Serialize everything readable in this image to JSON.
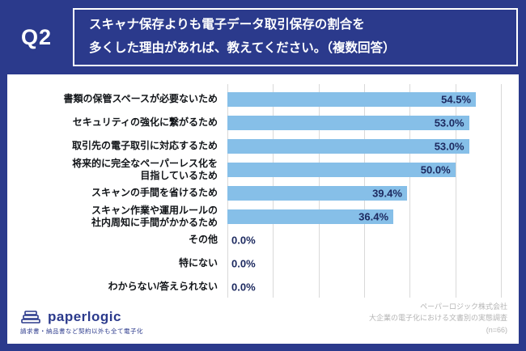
{
  "header": {
    "q_label": "Q2",
    "title_line1": "スキャナ保存よりも電子データ取引保存の割合を",
    "title_line2": "多くした理由があれば、教えてください。（複数回答）"
  },
  "chart_data": {
    "type": "bar",
    "orientation": "horizontal",
    "title": "スキャナ保存よりも電子データ取引保存の割合を多くした理由があれば、教えてください。（複数回答）",
    "categories": [
      "書類の保管スペースが必要ないため",
      "セキュリティの強化に繋がるため",
      "取引先の電子取引に対応するため",
      "将来的に完全なペーパーレス化を\n目指しているため",
      "スキャンの手間を省けるため",
      "スキャン作業や運用ルールの\n社内周知に手間がかかるため",
      "その他",
      "特にない",
      "わからない/答えられない"
    ],
    "values": [
      54.5,
      53.0,
      53.0,
      50.0,
      39.4,
      36.4,
      0.0,
      0.0,
      0.0
    ],
    "value_labels": [
      "54.5%",
      "53.0%",
      "53.0%",
      "50.0%",
      "39.4%",
      "36.4%",
      "0.0%",
      "0.0%",
      "0.0%"
    ],
    "xlim": [
      0,
      60
    ],
    "gridline_step": 10,
    "grid": true,
    "legend": false,
    "bar_color": "#86bfe8"
  },
  "footer": {
    "logo_text": "paperlogic",
    "logo_tagline": "請求書・納品書など契約以外も全て電子化",
    "credit_lines": [
      "ペーパーロジック株式会社",
      "大企業の電子化における文書別の実態調査",
      "(n=66)"
    ]
  },
  "colors": {
    "background_navy": "#2b3a8c",
    "bar_blue": "#86bfe8",
    "gridline": "#d9d9d9",
    "value_text": "#1d2a60",
    "credit_gray": "#b4b4b4"
  }
}
